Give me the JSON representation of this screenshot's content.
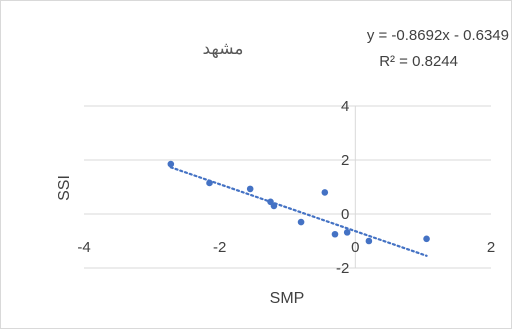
{
  "chart_data": {
    "type": "scatter",
    "title": "مشهد",
    "xlabel": "SMP",
    "ylabel": "SSI",
    "xlim": [
      -4,
      2
    ],
    "ylim": [
      -2,
      4
    ],
    "x_ticks": [
      "-4",
      "-2",
      "0",
      "2"
    ],
    "y_ticks": [
      "-2",
      "0",
      "2",
      "4"
    ],
    "grid": "horizontal",
    "marker_color": "#4472c4",
    "trendline_color": "#4472c4",
    "trendline": {
      "type": "linear",
      "slope": -0.8692,
      "intercept": -0.6349,
      "equation_line1": "y = -0.8692x - 0.6349",
      "equation_line2": "R² = 0.8244"
    },
    "points": [
      {
        "x": -2.72,
        "y": 1.85
      },
      {
        "x": -2.15,
        "y": 1.15
      },
      {
        "x": -1.55,
        "y": 0.93
      },
      {
        "x": -1.25,
        "y": 0.45
      },
      {
        "x": -1.2,
        "y": 0.3
      },
      {
        "x": -0.8,
        "y": -0.3
      },
      {
        "x": -0.45,
        "y": 0.8
      },
      {
        "x": -0.3,
        "y": -0.75
      },
      {
        "x": -0.12,
        "y": -0.68
      },
      {
        "x": 0.2,
        "y": -1.0
      },
      {
        "x": 1.05,
        "y": -0.92
      }
    ]
  }
}
